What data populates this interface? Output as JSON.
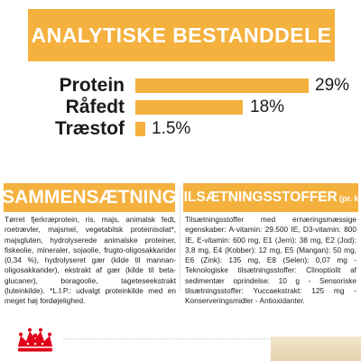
{
  "header": {
    "title": "ANALYTISKE BESTANDDELE"
  },
  "analysis": {
    "rows": [
      {
        "label": "Protein",
        "value": "29%",
        "percent": 29
      },
      {
        "label": "Råfedt",
        "value": "18%",
        "percent": 18
      },
      {
        "label": "Træstof",
        "value": "1.5%",
        "percent": 1.5
      }
    ]
  },
  "composition": {
    "title": "SAMMENSÆTNING",
    "text": "Tørret fjerkræprotein, ris, majs, animalsk fedt, roetrævler, majsmel, vegetabilsk proteinisolat*, majsgluten, hydrolyserede animalske proteiner, fiskeolie, mineraler, sojaolie, frugto-oligosakkarider (0,34 %), hydrolyseret gær (kilde til mannan-oligosakkarider), ekstrakt af gær (kilde til beta-glucaner), boragoolie, tageteseekstrakt (luteinkilde). *L.I.P.: udvalgt proteinkilde med en meget høj fordøjelighed."
  },
  "additives": {
    "title": "TILSÆTNINGSSTOFFER",
    "unit": "(pr. kg)",
    "text": "Tilsætningsstoffer med ernæringsmæssige egenskaber: A-vitamin: 29.500 IE, D3-vitamin: 800 IE, E-vitamin: 600 mg, E1 (Jern): 38 mg, E2 (Jod): 3,8 mg, E4 (Kobber): 12 mg, E5 (Mangan): 50 mg, E6 (Zink): 135 mg, E8 (Selen): 0,07 mg - Teknologiske tilsætningsstoffer: Clinoptiolit af sedimentær oprindelse: 10 g - Sensoriske tilsætningsstoffer: Yuccaekstrakt: 125 mg - Konserveringsmidler - Antioxidanter."
  },
  "footer": {
    "logo": "royal-canin-crown-logo"
  },
  "colors": {
    "accent": "#f4b13e",
    "text": "#1a1a1a",
    "band": "#e9d8b5"
  }
}
